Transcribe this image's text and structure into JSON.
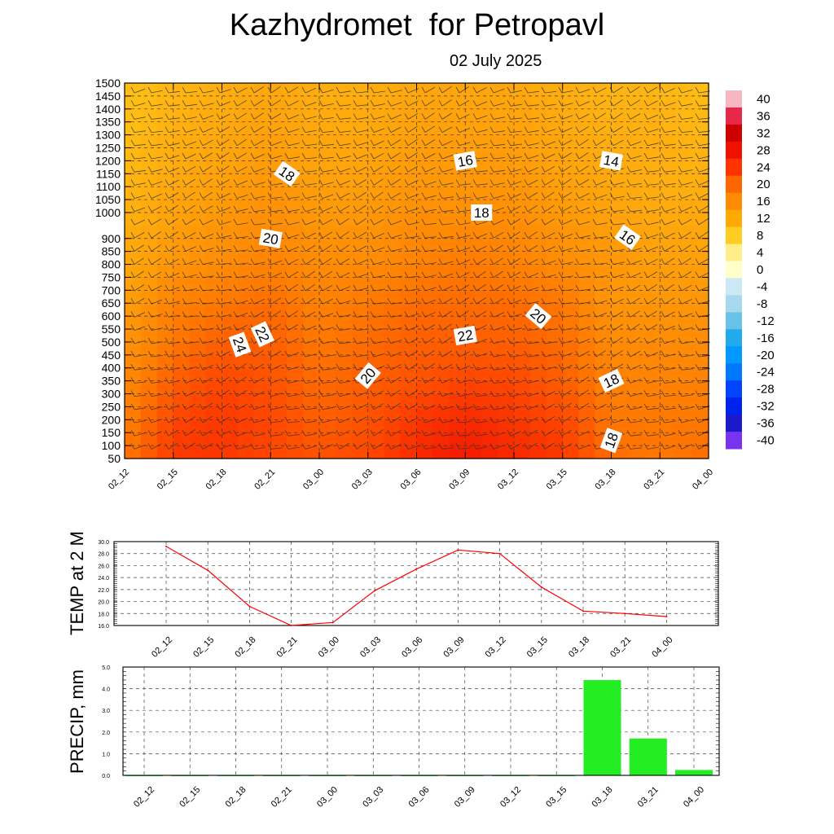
{
  "title": "Kazhydromet  for Petropavl",
  "date": "02 July 2025",
  "chart_data": [
    {
      "type": "heatmap",
      "title": "Kazhydromet  for Petropavl",
      "subtitle": "02 July 2025",
      "x": [
        "02_12",
        "02_15",
        "02_18",
        "02_21",
        "03_00",
        "03_03",
        "03_06",
        "03_09",
        "03_12",
        "03_15",
        "03_18",
        "03_21",
        "04_00"
      ],
      "y_ticks": [
        50,
        100,
        150,
        200,
        250,
        300,
        350,
        400,
        450,
        500,
        550,
        600,
        650,
        700,
        750,
        800,
        850,
        900,
        1000,
        1050,
        1100,
        1150,
        1200,
        1250,
        1300,
        1350,
        1400,
        1450,
        1500
      ],
      "colorbar": {
        "labels": [
          40,
          36,
          32,
          28,
          24,
          20,
          16,
          12,
          8,
          4,
          0,
          -4,
          -8,
          -12,
          -16,
          -20,
          -24,
          -28,
          -32,
          -36,
          -40
        ],
        "colors": [
          "#f7b6c0",
          "#e8284a",
          "#cc0000",
          "#ee1100",
          "#ff3300",
          "#ff6600",
          "#ff8c00",
          "#ffaa00",
          "#ffcc22",
          "#ffee88",
          "#ffffcc",
          "#cce8f4",
          "#a8d8ee",
          "#66c2e8",
          "#22aaee",
          "#0099ff",
          "#0077ff",
          "#0044ff",
          "#0022ee",
          "#1a1acc",
          "#7733ee"
        ]
      },
      "temperature": [
        [
          20,
          19,
          18,
          17,
          16,
          15,
          14,
          13,
          12,
          11
        ],
        [
          25,
          24,
          22,
          20,
          19,
          17,
          16,
          15,
          14,
          13
        ],
        [
          25,
          25,
          24,
          22,
          20,
          18,
          17,
          16,
          15,
          14
        ],
        [
          24,
          24,
          23,
          22,
          21,
          19,
          18,
          17,
          16,
          15
        ],
        [
          23,
          22,
          21,
          20,
          19,
          18,
          17,
          16,
          15,
          14
        ],
        [
          24,
          23,
          22,
          21,
          20,
          18,
          17,
          16,
          15,
          14
        ],
        [
          26,
          25,
          23,
          22,
          21,
          19,
          18,
          17,
          16,
          15
        ],
        [
          27,
          26,
          24,
          22,
          21,
          20,
          18,
          17,
          16,
          15
        ],
        [
          26,
          25,
          24,
          22,
          21,
          19,
          18,
          17,
          16,
          15
        ],
        [
          25,
          24,
          22,
          21,
          20,
          18,
          17,
          16,
          15,
          14
        ],
        [
          21,
          20,
          19,
          18,
          17,
          17,
          16,
          15,
          14,
          13
        ],
        [
          20,
          20,
          19,
          18,
          17,
          16,
          15,
          14,
          14,
          13
        ],
        [
          21,
          20,
          19,
          18,
          17,
          16,
          15,
          14,
          13,
          12
        ]
      ],
      "temperature_levels": [
        50,
        200,
        350,
        500,
        650,
        800,
        950,
        1100,
        1300,
        1500
      ],
      "contour_labels": [
        {
          "text": "18",
          "x": "02_21",
          "y": 1150
        },
        {
          "text": "20",
          "x": "02_21",
          "y": 900
        },
        {
          "text": "24",
          "x": "02_18",
          "y": 490
        },
        {
          "text": "22",
          "x": "02_21",
          "y": 530
        },
        {
          "text": "20",
          "x": "03_03",
          "y": 370
        },
        {
          "text": "16",
          "x": "03_09",
          "y": 1200
        },
        {
          "text": "18",
          "x": "03_09",
          "y": 1000
        },
        {
          "text": "22",
          "x": "03_09",
          "y": 525
        },
        {
          "text": "20",
          "x": "03_12",
          "y": 600
        },
        {
          "text": "14",
          "x": "03_18",
          "y": 1200
        },
        {
          "text": "16",
          "x": "03_18",
          "y": 905
        },
        {
          "text": "18",
          "x": "03_18",
          "y": 350
        },
        {
          "text": "18",
          "x": "03_18",
          "y": 120
        }
      ]
    },
    {
      "type": "line",
      "ylabel": "TEMP at 2 M",
      "categories": [
        "02_12",
        "02_15",
        "02_18",
        "02_21",
        "03_00",
        "03_03",
        "03_06",
        "03_09",
        "03_12",
        "03_15",
        "03_18",
        "03_21",
        "04_00"
      ],
      "values": [
        29.2,
        25.2,
        19.2,
        16.0,
        16.5,
        21.8,
        25.4,
        28.6,
        28.0,
        22.4,
        18.4,
        18.0,
        17.5
      ],
      "ylim": [
        16.0,
        30.0
      ],
      "y_ticks": [
        "16.0",
        "18.0",
        "20.0",
        "22.0",
        "24.0",
        "26.0",
        "28.0",
        "30.0"
      ],
      "line_color": "#ff0000"
    },
    {
      "type": "bar",
      "ylabel": "PRECIP, mm",
      "categories": [
        "02_12",
        "02_15",
        "02_18",
        "02_21",
        "03_00",
        "03_03",
        "03_06",
        "03_09",
        "03_12",
        "03_15",
        "03_18",
        "03_21",
        "04_00"
      ],
      "values": [
        0,
        0,
        0,
        0,
        0,
        0,
        0,
        0,
        0,
        0,
        4.4,
        1.7,
        0.25
      ],
      "ylim": [
        0.0,
        5.0
      ],
      "y_ticks": [
        "0.0",
        "1.0",
        "2.0",
        "3.0",
        "4.0",
        "5.0"
      ],
      "bar_color": "#22ee22"
    }
  ]
}
